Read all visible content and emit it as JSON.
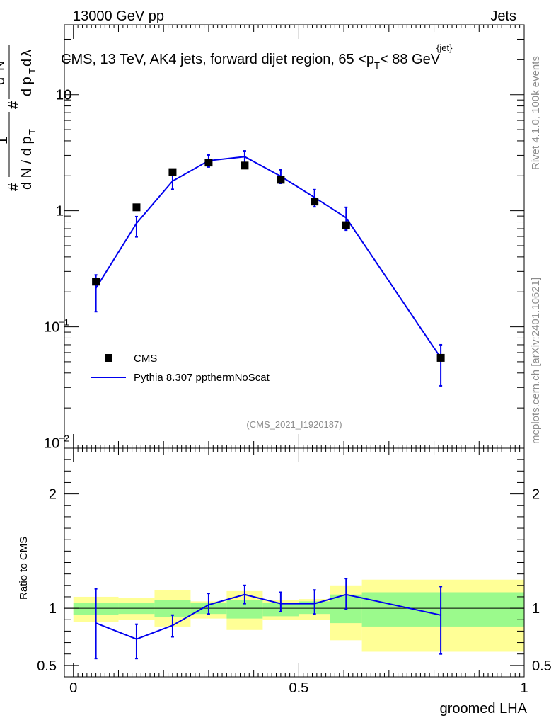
{
  "header": {
    "energy_label": "13000 GeV pp",
    "category_label": "Jets"
  },
  "side_labels": {
    "rivet": "Rivet 4.1.0,  100k events",
    "mcplots": "mcplots.cern.ch [arXiv:2401.10621]"
  },
  "chart_data": [
    {
      "type": "line",
      "panel": "main",
      "title": "CMS, 13 TeV, AK4 jets, forward dijet region, 65 <p_T^{jet}< 88 GeV",
      "title_parts": {
        "prefix": "CMS, 13 TeV, AK4 jets, forward dijet region, 65 <p",
        "sup": "{jet}",
        "sub": "T",
        "suffix": "< 88 GeV"
      },
      "ylabel": "1/(dN/dp_T) d²N/(dp_T dλ)",
      "yscale": "log",
      "ylim": [
        0.009,
        40
      ],
      "xlim": [
        -0.02,
        1.0
      ],
      "yticks": [
        {
          "value": 0.01,
          "base": "10",
          "exp": "−2"
        },
        {
          "value": 0.1,
          "base": "10",
          "exp": "−1"
        },
        {
          "value": 1,
          "base": "1",
          "exp": ""
        },
        {
          "value": 10,
          "base": "10",
          "exp": ""
        }
      ],
      "legend_position": "bottom-left",
      "watermark": "(CMS_2021_I1920187)",
      "series": [
        {
          "name": "CMS",
          "style": "markers",
          "color": "#000000",
          "x": [
            0.05,
            0.14,
            0.22,
            0.3,
            0.38,
            0.46,
            0.535,
            0.605,
            0.815
          ],
          "y": [
            0.245,
            1.07,
            2.15,
            2.6,
            2.45,
            1.85,
            1.2,
            0.75,
            0.054
          ]
        },
        {
          "name": "Pythia 8.307 ppthermNoScat",
          "style": "line",
          "color": "#0000ee",
          "x": [
            0.05,
            0.14,
            0.22,
            0.3,
            0.38,
            0.46,
            0.535,
            0.605,
            0.815
          ],
          "y": [
            0.215,
            0.78,
            1.8,
            2.7,
            2.92,
            1.98,
            1.3,
            0.87,
            0.054
          ],
          "err_low": [
            0.135,
            0.595,
            1.53,
            2.38,
            2.6,
            1.72,
            1.08,
            0.68,
            0.031
          ],
          "err_high": [
            0.28,
            0.89,
            2.1,
            3.02,
            3.28,
            2.25,
            1.52,
            1.07,
            0.07
          ]
        }
      ]
    },
    {
      "type": "line",
      "panel": "ratio",
      "ylabel": "Ratio to CMS",
      "xlabel": "groomed LHA",
      "ylim": [
        0.4,
        2.4
      ],
      "xlim": [
        -0.02,
        1.0
      ],
      "yticks": [
        0.5,
        1,
        2
      ],
      "ytick_labels": [
        "0.5",
        "1",
        "2"
      ],
      "xticks": [
        0,
        0.5,
        1
      ],
      "xtick_labels": [
        "0",
        "0.5",
        "1"
      ],
      "bands": {
        "edges": [
          0.0,
          0.1,
          0.18,
          0.26,
          0.34,
          0.42,
          0.5,
          0.57,
          0.64,
          1.0
        ],
        "green_low": [
          0.94,
          0.95,
          0.92,
          0.95,
          0.91,
          0.93,
          0.95,
          0.87,
          0.84
        ],
        "green_high": [
          1.05,
          1.05,
          1.07,
          1.05,
          1.07,
          1.05,
          1.06,
          1.12,
          1.14
        ],
        "yellow_low": [
          0.88,
          0.9,
          0.84,
          0.91,
          0.81,
          0.9,
          0.9,
          0.72,
          0.62
        ],
        "yellow_high": [
          1.1,
          1.09,
          1.16,
          1.06,
          1.15,
          1.07,
          1.08,
          1.2,
          1.25
        ],
        "green_color": "#9bfa8c",
        "yellow_color": "#ffff96"
      },
      "series": [
        {
          "name": "Pythia 8.307 ppthermNoScat / CMS",
          "color": "#0000ee",
          "x": [
            0.05,
            0.14,
            0.22,
            0.3,
            0.38,
            0.46,
            0.535,
            0.605,
            0.815
          ],
          "y": [
            0.87,
            0.73,
            0.85,
            1.03,
            1.12,
            1.04,
            1.04,
            1.12,
            0.94
          ],
          "err_low": [
            0.56,
            0.56,
            0.75,
            0.95,
            1.04,
            0.97,
            0.95,
            0.99,
            0.6
          ],
          "err_high": [
            1.17,
            0.86,
            0.94,
            1.13,
            1.2,
            1.14,
            1.16,
            1.26,
            1.19
          ]
        }
      ]
    }
  ]
}
